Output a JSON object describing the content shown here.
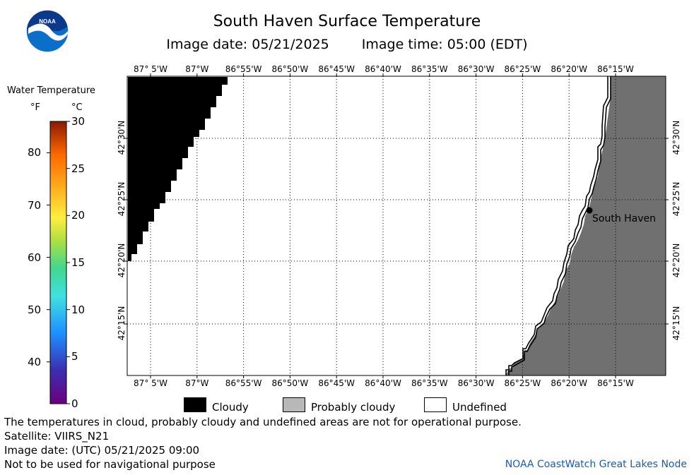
{
  "title": "South Haven Surface Temperature",
  "image_date_label": "Image date: 05/21/2025",
  "image_time_label": "Image time: 05:00 (EDT)",
  "logo_text": "NOAA",
  "legend": {
    "title": "Water Temperature",
    "unit_f": "°F",
    "unit_c": "°C",
    "fahrenheit_ticks": [
      "80",
      "70",
      "60",
      "50",
      "40"
    ],
    "celsius_ticks": [
      "30",
      "25",
      "20",
      "15",
      "10",
      "5",
      "0"
    ]
  },
  "map": {
    "lon_labels": [
      "87° 5'W",
      "87°W",
      "86°55'W",
      "86°50'W",
      "86°45'W",
      "86°40'W",
      "86°35'W",
      "86°30'W",
      "86°25'W",
      "86°20'W",
      "86°15'W"
    ],
    "lat_labels": [
      "42°30'N",
      "42°25'N",
      "42°20'N",
      "42°15'N"
    ],
    "place_label": "South Haven",
    "land_color": "#707070",
    "cloud_color": "#000000"
  },
  "categories": {
    "cloudy": "Cloudy",
    "probably_cloudy": "Probably cloudy",
    "undefined": "Undefined"
  },
  "footer": {
    "disclaimer": "The temperatures in cloud, probably cloudy and undefined areas are not for operational purpose.",
    "satellite": "Satellite: VIIRS_N21",
    "utc_date": "Image date: (UTC) 05/21/2025  09:00",
    "nav_warning": "Not to be used for navigational purpose",
    "credit": "NOAA CoastWatch Great Lakes Node"
  }
}
